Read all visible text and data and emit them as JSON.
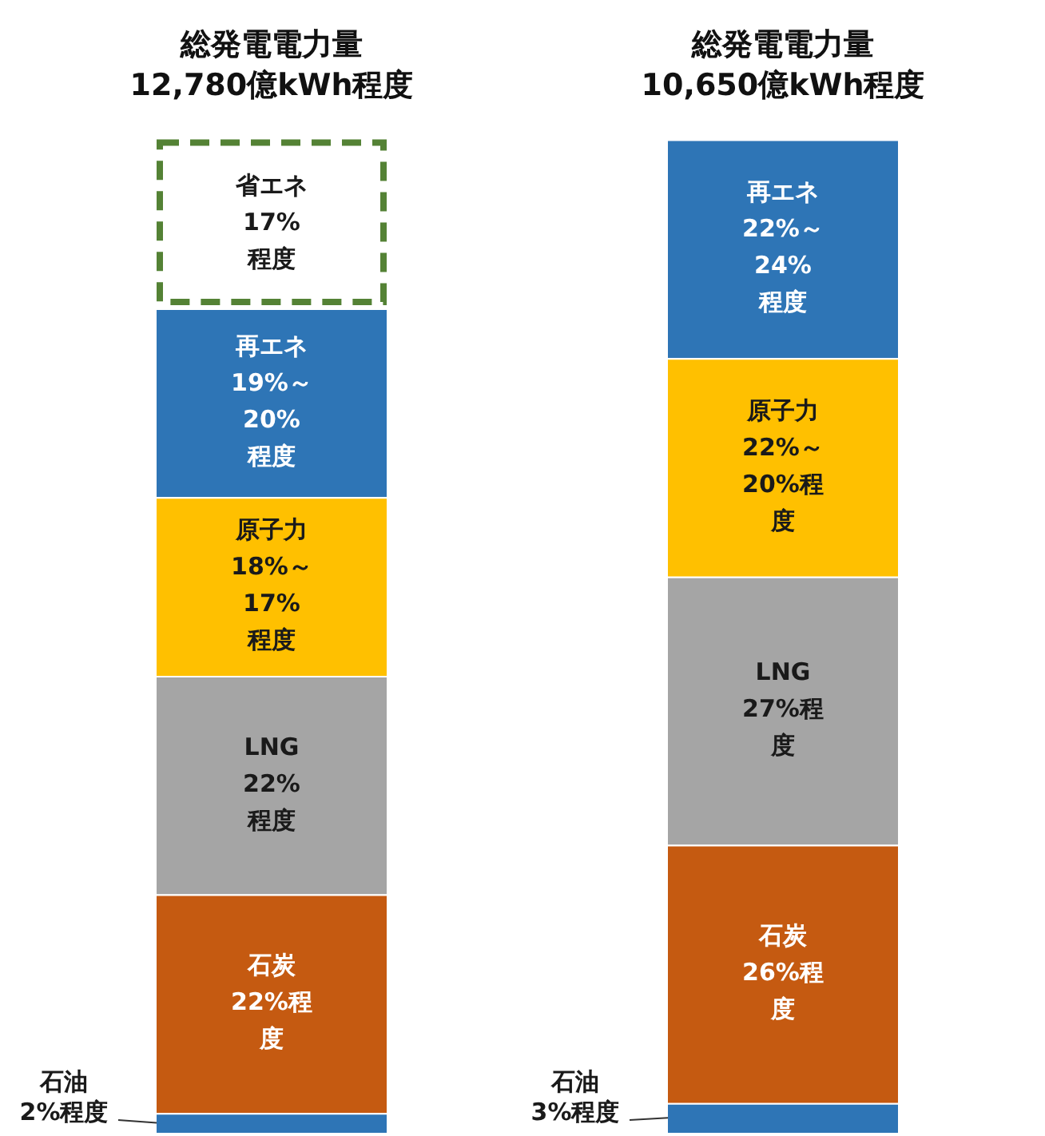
{
  "chart_data": {
    "type": "bar",
    "stacked": true,
    "categories": [
      "総発電電力量\n12,780億kWh程度",
      "総発電電力量\n10,650億kWh程度"
    ],
    "series": [
      {
        "color": "#2e75b6",
        "values": [
          2,
          3
        ],
        "value_labels": [
          "石油\n2%程度",
          "石油\n3%程度"
        ]
      },
      {
        "color": "#c55a11",
        "values": [
          22,
          26
        ],
        "value_labels": [
          "石炭\n22%程度",
          "石炭\n26%程度"
        ]
      },
      {
        "color": "#a5a5a5",
        "values": [
          22,
          27
        ],
        "value_labels": [
          "LNG\n22%\n程度",
          "LNG\n27%程度"
        ]
      },
      {
        "color": "#ffc000",
        "values": [
          18,
          22
        ],
        "value_labels": [
          "原子力\n18%～\n17%\n程度",
          "原子力\n22%～\n20%程度"
        ]
      },
      {
        "color": "#2e75b6",
        "values": [
          19,
          22
        ],
        "value_labels": [
          "再エネ\n19%～\n20%\n程度",
          "再エネ\n22%～\n24%\n程度"
        ]
      },
      {
        "color": "#548235",
        "line_style": "dashed",
        "values": [
          17,
          null
        ],
        "value_labels": [
          "省エネ\n17%\n程度",
          null
        ]
      }
    ],
    "ylim": [
      0,
      100
    ],
    "tick_labels": "x",
    "legend": false
  }
}
